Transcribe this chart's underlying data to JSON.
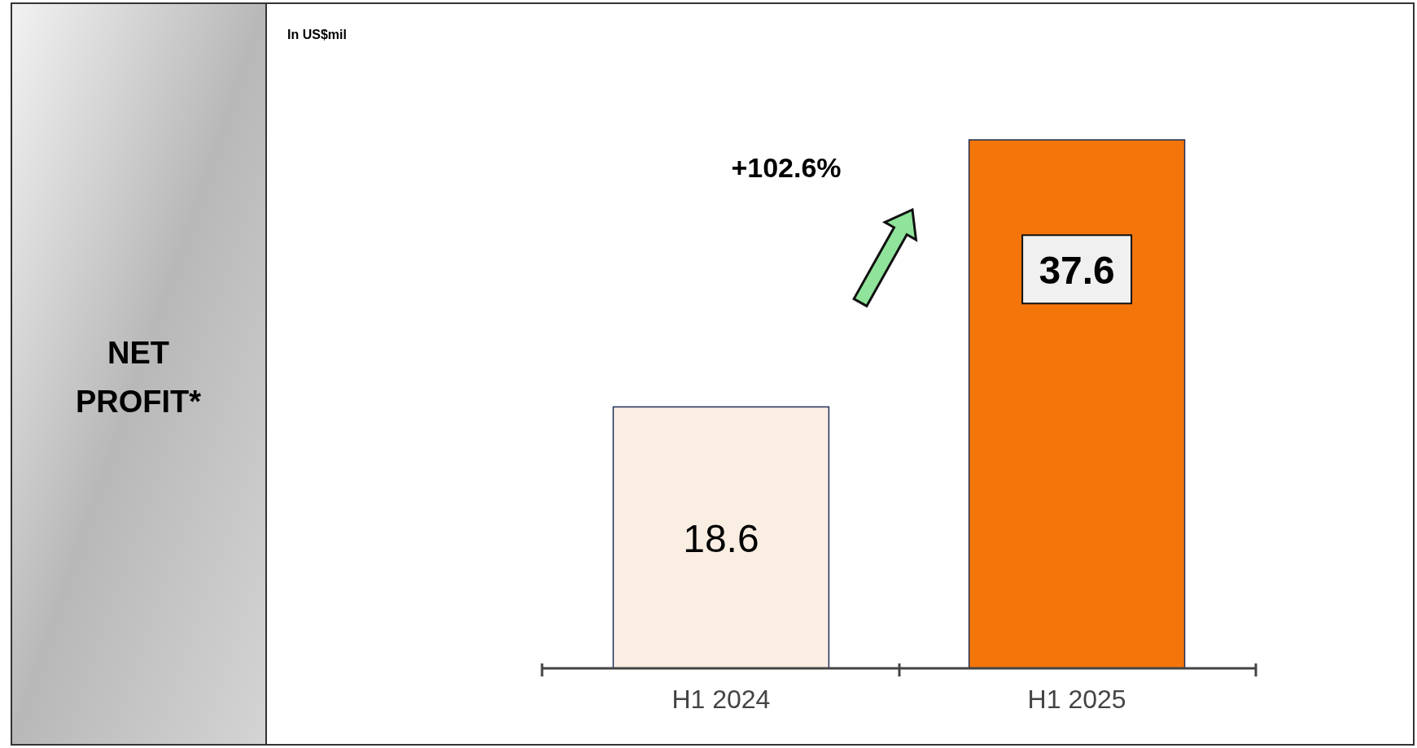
{
  "chart_data": {
    "type": "bar",
    "title": "NET PROFIT*",
    "subtitle": "In US$mil",
    "annotations": [
      "+102.6%"
    ],
    "categories": [
      "H1 2024",
      "H1 2025"
    ],
    "values": [
      18.6,
      37.6
    ],
    "colors": [
      "#faeee3",
      "#f4760b"
    ],
    "data_labels": true
  }
}
